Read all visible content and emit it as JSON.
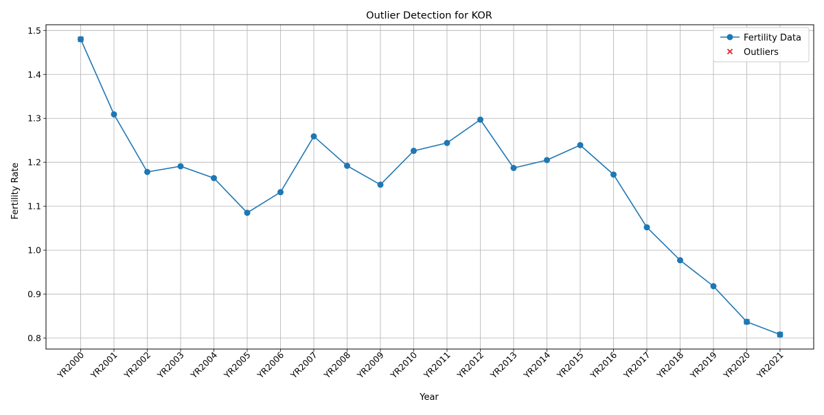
{
  "chart_data": {
    "type": "line",
    "title": "Outlier Detection for KOR",
    "xlabel": "Year",
    "ylabel": "Fertility Rate",
    "categories": [
      "YR2000",
      "YR2001",
      "YR2002",
      "YR2003",
      "YR2004",
      "YR2005",
      "YR2006",
      "YR2007",
      "YR2008",
      "YR2009",
      "YR2010",
      "YR2011",
      "YR2012",
      "YR2013",
      "YR2014",
      "YR2015",
      "YR2016",
      "YR2017",
      "YR2018",
      "YR2019",
      "YR2020",
      "YR2021"
    ],
    "series": [
      {
        "name": "Fertility Data",
        "color": "#1f77b4",
        "values": [
          1.48,
          1.309,
          1.178,
          1.191,
          1.164,
          1.085,
          1.132,
          1.259,
          1.192,
          1.149,
          1.226,
          1.244,
          1.297,
          1.187,
          1.205,
          1.239,
          1.172,
          1.052,
          0.977,
          0.918,
          0.837,
          0.808
        ]
      }
    ],
    "outliers": {
      "name": "Outliers",
      "color": "#d62728",
      "marker": "x",
      "categories": [
        "YR2000",
        "YR2020",
        "YR2021"
      ],
      "values": [
        1.48,
        0.837,
        0.808
      ]
    },
    "ylim": [
      0.775,
      1.513
    ],
    "yticks": [
      0.8,
      0.9,
      1.0,
      1.1,
      1.2,
      1.3,
      1.4,
      1.5
    ],
    "ytick_labels": [
      "0.8",
      "0.9",
      "1.0",
      "1.1",
      "1.2",
      "1.3",
      "1.4",
      "1.5"
    ],
    "grid": true,
    "legend_position": "top-right"
  }
}
